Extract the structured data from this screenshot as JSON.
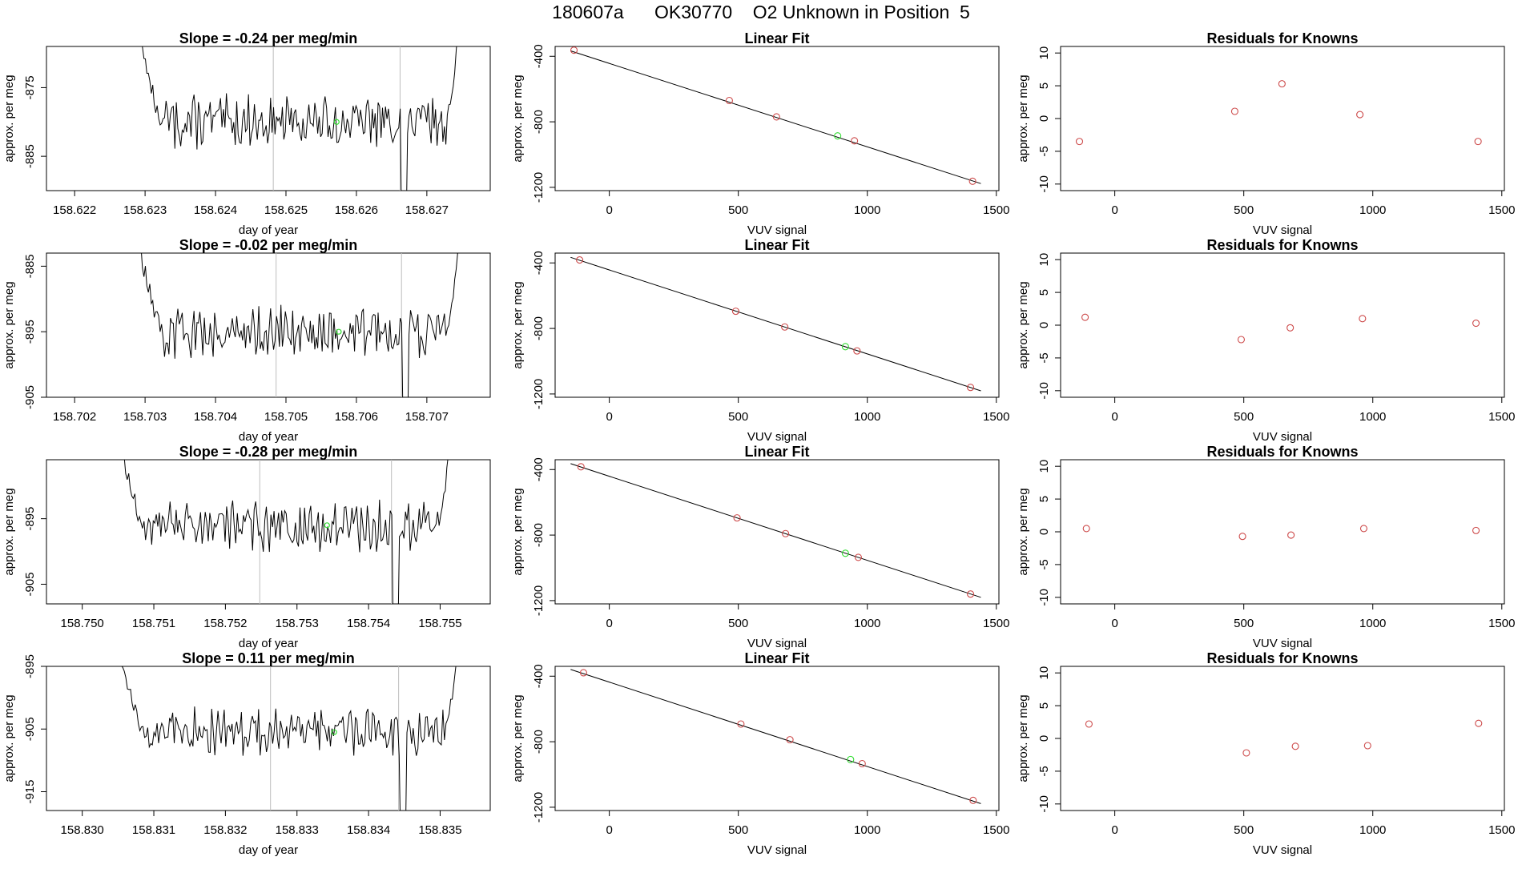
{
  "page_title": "180607a      OK30770    O2 Unknown in Position  5",
  "colors": {
    "line": "#000000",
    "known_point": "#cd4a4a",
    "unknown_point": "#33dd33",
    "marker_line": "#bdbdbd"
  },
  "chart_data": [
    {
      "type": "line",
      "row": 0,
      "col": 0,
      "title": "Slope =  -0.24  per meg/min",
      "xlabel": "day of year",
      "ylabel": "approx. per meg",
      "xlim": [
        158.6216,
        158.6279
      ],
      "ylim": [
        -890,
        -869
      ],
      "xticks": [
        "158.622",
        "158.623",
        "158.624",
        "158.625",
        "158.626",
        "158.627"
      ],
      "yticks": [
        "-875",
        "-885"
      ],
      "trace_start": 158.6229,
      "trace_end": 158.6275,
      "markers": [
        158.62482,
        158.62662
      ],
      "unknown_point": {
        "x": 158.62572,
        "y": -880
      }
    },
    {
      "type": "scatter",
      "row": 0,
      "col": 1,
      "title": "Linear Fit",
      "xlabel": "VUV signal",
      "ylabel": "approx. per meg",
      "xlim": [
        -210,
        1510
      ],
      "ylim": [
        -1220,
        -340
      ],
      "xticks": [
        "0",
        "500",
        "1000",
        "1500"
      ],
      "yticks": [
        "-400",
        "-800",
        "-1200"
      ],
      "fit": {
        "x": [
          -150,
          1440
        ],
        "y": [
          -367,
          -1177
        ]
      },
      "knowns": {
        "x": [
          -137,
          465,
          648,
          950,
          1408
        ],
        "y": [
          -363,
          -670,
          -770,
          -916,
          -1163
        ]
      },
      "unknown": {
        "x": 885,
        "y": -886
      }
    },
    {
      "type": "scatter",
      "row": 0,
      "col": 2,
      "title": "Residuals for Knowns",
      "xlabel": "VUV signal",
      "ylabel": "approx. per meg",
      "xlim": [
        -210,
        1510
      ],
      "ylim": [
        -11,
        11
      ],
      "xticks": [
        "0",
        "500",
        "1000",
        "1500"
      ],
      "yticks": [
        "10",
        "5",
        "0",
        "-5",
        "-10"
      ],
      "residuals": {
        "x": [
          -137,
          465,
          648,
          950,
          1408
        ],
        "y": [
          -3.5,
          1.1,
          5.3,
          0.6,
          -3.5
        ]
      }
    },
    {
      "type": "line",
      "row": 1,
      "col": 0,
      "title": "Slope =  -0.02  per meg/min",
      "xlabel": "day of year",
      "ylabel": "approx. per meg",
      "xlim": [
        158.7016,
        158.7079
      ],
      "ylim": [
        -905,
        -883
      ],
      "xticks": [
        "158.702",
        "158.703",
        "158.704",
        "158.705",
        "158.706",
        "158.707"
      ],
      "yticks": [
        "-885",
        "-895",
        "-905"
      ],
      "trace_start": 158.7029,
      "trace_end": 158.7075,
      "markers": [
        158.70486,
        158.70664
      ],
      "unknown_point": {
        "x": 158.70575,
        "y": -895
      }
    },
    {
      "type": "scatter",
      "row": 1,
      "col": 1,
      "title": "Linear Fit",
      "xlabel": "VUV signal",
      "ylabel": "approx. per meg",
      "xlim": [
        -210,
        1510
      ],
      "ylim": [
        -1220,
        -340
      ],
      "xticks": [
        "0",
        "500",
        "1000",
        "1500"
      ],
      "yticks": [
        "-400",
        "-800",
        "-1200"
      ],
      "fit": {
        "x": [
          -150,
          1440
        ],
        "y": [
          -366,
          -1181
        ]
      },
      "knowns": {
        "x": [
          -115,
          490,
          680,
          960,
          1400
        ],
        "y": [
          -382,
          -695,
          -791,
          -937,
          -1160
        ]
      },
      "unknown": {
        "x": 915,
        "y": -911
      }
    },
    {
      "type": "scatter",
      "row": 1,
      "col": 2,
      "title": "Residuals for Knowns",
      "xlabel": "VUV signal",
      "ylabel": "approx. per meg",
      "xlim": [
        -210,
        1510
      ],
      "ylim": [
        -11,
        11
      ],
      "xticks": [
        "0",
        "500",
        "1000",
        "1500"
      ],
      "yticks": [
        "10",
        "5",
        "0",
        "-5",
        "-10"
      ],
      "residuals": {
        "x": [
          -115,
          490,
          680,
          960,
          1400
        ],
        "y": [
          1.2,
          -2.2,
          -0.4,
          1.0,
          0.3
        ]
      }
    },
    {
      "type": "line",
      "row": 2,
      "col": 0,
      "title": "Slope =  -0.28  per meg/min",
      "xlabel": "day of year",
      "ylabel": "approx. per meg",
      "xlim": [
        158.7495,
        158.7557
      ],
      "ylim": [
        -908,
        -886
      ],
      "xticks": [
        "158.750",
        "158.751",
        "158.752",
        "158.753",
        "158.754",
        "158.755"
      ],
      "yticks": [
        "-895",
        "-905"
      ],
      "trace_start": 158.7505,
      "trace_end": 158.7552,
      "markers": [
        158.75248,
        158.75432
      ],
      "unknown_point": {
        "x": 158.75342,
        "y": -896
      }
    },
    {
      "type": "scatter",
      "row": 2,
      "col": 1,
      "title": "Linear Fit",
      "xlabel": "VUV signal",
      "ylabel": "approx. per meg",
      "xlim": [
        -210,
        1510
      ],
      "ylim": [
        -1220,
        -340
      ],
      "xticks": [
        "0",
        "500",
        "1000",
        "1500"
      ],
      "yticks": [
        "-400",
        "-800",
        "-1200"
      ],
      "fit": {
        "x": [
          -150,
          1440
        ],
        "y": [
          -364,
          -1180
        ]
      },
      "knowns": {
        "x": [
          -110,
          495,
          683,
          965,
          1400
        ],
        "y": [
          -383,
          -695,
          -791,
          -936,
          -1160
        ]
      },
      "unknown": {
        "x": 915,
        "y": -911
      }
    },
    {
      "type": "scatter",
      "row": 2,
      "col": 2,
      "title": "Residuals for Knowns",
      "xlabel": "VUV signal",
      "ylabel": "approx. per meg",
      "xlim": [
        -210,
        1510
      ],
      "ylim": [
        -11,
        11
      ],
      "xticks": [
        "0",
        "500",
        "1000",
        "1500"
      ],
      "yticks": [
        "10",
        "5",
        "0",
        "-5",
        "-10"
      ],
      "residuals": {
        "x": [
          -110,
          495,
          683,
          965,
          1400
        ],
        "y": [
          0.5,
          -0.7,
          -0.5,
          0.5,
          0.2
        ]
      }
    },
    {
      "type": "line",
      "row": 3,
      "col": 0,
      "title": "Slope =  0.11  per meg/min",
      "xlabel": "day of year",
      "ylabel": "approx. per meg",
      "xlim": [
        158.8295,
        158.8357
      ],
      "ylim": [
        -918,
        -895
      ],
      "xticks": [
        "158.830",
        "158.831",
        "158.832",
        "158.833",
        "158.834",
        "158.835"
      ],
      "yticks": [
        "-895",
        "-905",
        "-915"
      ],
      "trace_start": 158.8305,
      "trace_end": 158.8353,
      "markers": [
        158.83263,
        158.83442
      ],
      "unknown_point": {
        "x": 158.83352,
        "y": -905.5
      }
    },
    {
      "type": "scatter",
      "row": 3,
      "col": 1,
      "title": "Linear Fit",
      "xlabel": "VUV signal",
      "ylabel": "approx. per meg",
      "xlim": [
        -210,
        1510
      ],
      "ylim": [
        -1220,
        -340
      ],
      "xticks": [
        "0",
        "500",
        "1000",
        "1500"
      ],
      "yticks": [
        "-400",
        "-800",
        "-1200"
      ],
      "fit": {
        "x": [
          -150,
          1440
        ],
        "y": [
          -359,
          -1178
        ]
      },
      "knowns": {
        "x": [
          -100,
          510,
          700,
          980,
          1410
        ],
        "y": [
          -379,
          -692,
          -788,
          -934,
          -1158
        ]
      },
      "unknown": {
        "x": 935,
        "y": -909
      }
    },
    {
      "type": "scatter",
      "row": 3,
      "col": 2,
      "title": "Residuals for Knowns",
      "xlabel": "VUV signal",
      "ylabel": "approx. per meg",
      "xlim": [
        -210,
        1510
      ],
      "ylim": [
        -11,
        11
      ],
      "xticks": [
        "0",
        "500",
        "1000",
        "1500"
      ],
      "yticks": [
        "10",
        "5",
        "0",
        "-5",
        "-10"
      ],
      "residuals": {
        "x": [
          -100,
          510,
          700,
          980,
          1410
        ],
        "y": [
          2.2,
          -2.2,
          -1.2,
          -1.1,
          2.3
        ]
      }
    }
  ]
}
